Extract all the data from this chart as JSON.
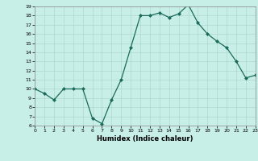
{
  "x": [
    0,
    1,
    2,
    3,
    4,
    5,
    6,
    7,
    8,
    9,
    10,
    11,
    12,
    13,
    14,
    15,
    16,
    17,
    18,
    19,
    20,
    21,
    22,
    23
  ],
  "y": [
    10,
    9.5,
    8.8,
    10,
    10,
    10,
    6.8,
    6.2,
    8.8,
    11,
    14.5,
    18,
    18,
    18.3,
    17.8,
    18.2,
    19.2,
    17.2,
    16,
    15.2,
    14.5,
    13,
    11.2,
    11.5
  ],
  "line_color": "#1a6b5a",
  "marker_color": "#1a6b5a",
  "bg_color": "#c8eee8",
  "grid_color": "#afd8d0",
  "xlabel": "Humidex (Indice chaleur)",
  "ylim": [
    6,
    19
  ],
  "xlim": [
    0,
    23
  ],
  "yticks": [
    6,
    7,
    8,
    9,
    10,
    11,
    12,
    13,
    14,
    15,
    16,
    17,
    18,
    19
  ],
  "xticks": [
    0,
    1,
    2,
    3,
    4,
    5,
    6,
    7,
    8,
    9,
    10,
    11,
    12,
    13,
    14,
    15,
    16,
    17,
    18,
    19,
    20,
    21,
    22,
    23
  ]
}
